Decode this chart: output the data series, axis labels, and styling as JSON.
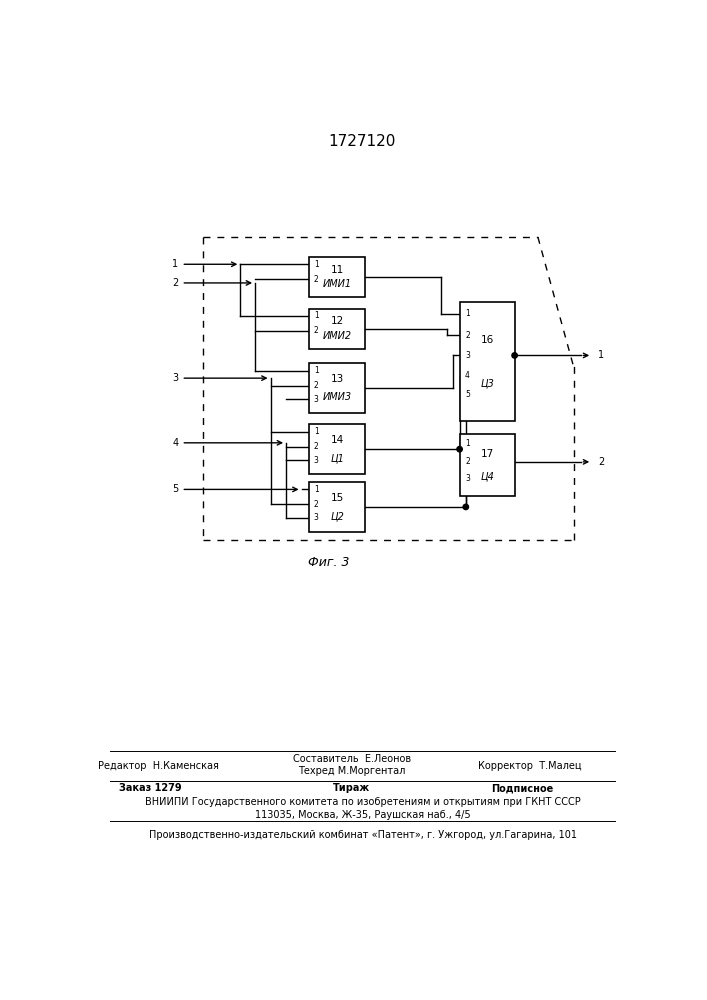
{
  "title": "1727120",
  "fig_label": "Фиг. 3",
  "editor_line": "Редактор  Н.Каменская",
  "composer_line": "Составитель  Е.Леонов",
  "techred_line": "Техред М.Моргентал",
  "corrector_line": "Корректор  Т.Малец",
  "order_line": "Заказ 1279",
  "tirazh_line": "Тираж",
  "podpisnoe_line": "Подписное",
  "vniiipi_line": "ВНИИПИ Государственного комитета по изобретениям и открытиям при ГКНТ СССР",
  "address_line": "113035, Москва, Ж-35, Раушская наб., 4/5",
  "plant_line": "Производственно-издательский комбинат «Патент», г. Ужгород, ул.Гагарина, 101"
}
